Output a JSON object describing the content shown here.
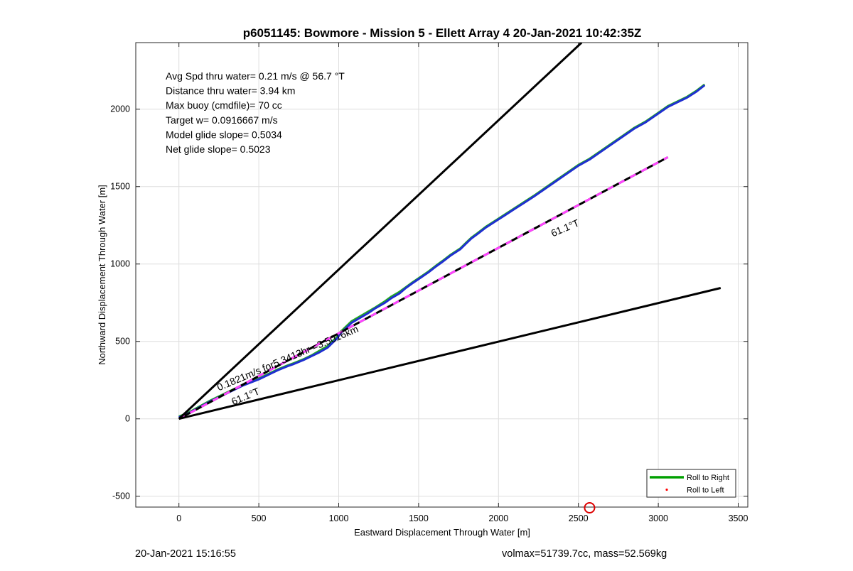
{
  "chart_data": {
    "type": "line",
    "title": "p6051145: Bowmore - Mission 5 - Ellett Array 4 20-Jan-2021 10:42:35Z",
    "xlabel": "Eastward Displacement Through Water [m]",
    "ylabel": "Northward Displacement Through Water [m]",
    "xlim": [
      -270,
      3560
    ],
    "ylim": [
      -570,
      2430
    ],
    "xticks": [
      0,
      500,
      1000,
      1500,
      2000,
      2500,
      3000,
      3500
    ],
    "yticks": [
      -500,
      0,
      500,
      1000,
      1500,
      2000
    ],
    "grid": true,
    "legend_position": "bottom-right",
    "stats": [
      "Avg Spd thru water=  0.21 m/s @  56.7 °T",
      "Distance thru water=  3.94 km",
      "Max buoy (cmdfile)= 70 cc",
      "Target w= 0.0916667 m/s",
      "Model glide slope= 0.5034",
      "Net glide slope= 0.5023"
    ],
    "legend": [
      {
        "name": "Roll to Right",
        "color": "#00a000",
        "style": "line"
      },
      {
        "name": "Roll to Left",
        "color": "#ff0000",
        "style": "dot"
      }
    ],
    "series": [
      {
        "name": "Roll to Right",
        "color": "#22aa22",
        "x": [
          0,
          60,
          120,
          200,
          300,
          400,
          500,
          560,
          620,
          680,
          720,
          780,
          830,
          880,
          930,
          960,
          990,
          1010,
          1040,
          1080,
          1130,
          1180,
          1230,
          1290,
          1330,
          1380,
          1420,
          1460,
          1510,
          1560,
          1610,
          1650,
          1700,
          1760,
          1800,
          1830,
          1870,
          1920,
          1980,
          2040,
          2100,
          2160,
          2220,
          2290,
          2360,
          2430,
          2500,
          2570,
          2640,
          2710,
          2780,
          2850,
          2920,
          2990,
          3060,
          3120,
          3180,
          3240,
          3290
        ],
        "y": [
          15,
          40,
          75,
          120,
          170,
          220,
          260,
          290,
          320,
          345,
          360,
          385,
          410,
          440,
          470,
          500,
          530,
          560,
          590,
          630,
          660,
          690,
          720,
          760,
          790,
          820,
          850,
          880,
          915,
          950,
          990,
          1020,
          1060,
          1100,
          1140,
          1170,
          1200,
          1240,
          1280,
          1320,
          1360,
          1400,
          1440,
          1490,
          1540,
          1590,
          1640,
          1680,
          1730,
          1780,
          1830,
          1880,
          1920,
          1970,
          2020,
          2050,
          2080,
          2120,
          2160
        ]
      },
      {
        "name": "Track",
        "color": "#1f2fd0",
        "x": [
          0,
          60,
          120,
          200,
          300,
          400,
          500,
          560,
          620,
          680,
          720,
          780,
          830,
          880,
          930,
          960,
          990,
          1010,
          1040,
          1080,
          1130,
          1180,
          1230,
          1290,
          1330,
          1380,
          1420,
          1460,
          1510,
          1560,
          1610,
          1650,
          1700,
          1760,
          1800,
          1830,
          1870,
          1920,
          1980,
          2040,
          2100,
          2160,
          2220,
          2290,
          2360,
          2430,
          2500,
          2570,
          2640,
          2710,
          2780,
          2850,
          2920,
          2990,
          3060,
          3120,
          3180,
          3240,
          3290
        ],
        "y": [
          10,
          35,
          70,
          115,
          165,
          215,
          255,
          285,
          315,
          340,
          355,
          380,
          405,
          430,
          460,
          490,
          520,
          550,
          580,
          620,
          650,
          680,
          715,
          750,
          780,
          810,
          845,
          875,
          910,
          945,
          985,
          1015,
          1055,
          1095,
          1135,
          1165,
          1195,
          1235,
          1275,
          1315,
          1355,
          1395,
          1435,
          1485,
          1535,
          1585,
          1635,
          1675,
          1725,
          1775,
          1825,
          1875,
          1915,
          1965,
          2015,
          2045,
          2075,
          2115,
          2155
        ]
      },
      {
        "name": "Heading line 61.1°T",
        "color": "#000000",
        "style": "dashed-overlay",
        "overlay_color": "#ff44ff",
        "x": [
          0,
          3060
        ],
        "y": [
          0,
          1690
        ]
      },
      {
        "name": "Cone upper",
        "color": "#000000",
        "x": [
          0,
          2520
        ],
        "y": [
          0,
          2430
        ]
      },
      {
        "name": "Cone lower",
        "color": "#000000",
        "x": [
          0,
          3390
        ],
        "y": [
          0,
          845
        ]
      },
      {
        "name": "Roll to Left",
        "color": "#ff0000",
        "style": "dot",
        "x": [],
        "y": []
      }
    ],
    "annotations": [
      {
        "text": "0.1821m/s for5.3413hr =3.5016km",
        "x": 250,
        "y": 180,
        "rotation_deg": -23
      },
      {
        "text": "61.1°T",
        "x": 340,
        "y": 88,
        "rotation_deg": -23
      },
      {
        "text": "61.1°T",
        "x": 2340,
        "y": 1175,
        "rotation_deg": -23
      }
    ],
    "marker": {
      "x": 2570,
      "y": -570,
      "color": "#dd0000"
    }
  },
  "footer": {
    "left": "20-Jan-2021 15:16:55",
    "right": "volmax=51739.7cc, mass=52.569kg"
  }
}
